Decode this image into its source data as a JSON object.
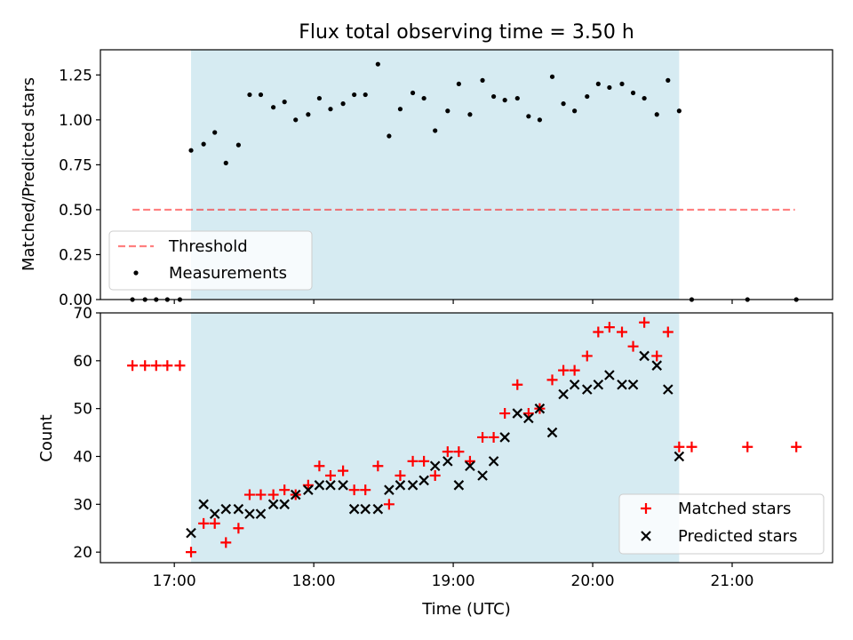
{
  "title": "Flux total observing time = 3.50 h",
  "colors": {
    "shade": "#add8e6",
    "threshold": "#ff0000",
    "measurement": "#000000",
    "matched": "#ff0000",
    "predicted": "#000000"
  },
  "chart_data": [
    {
      "type": "scatter",
      "panel": "top",
      "ylabel": "Matched/Predicted stars",
      "xlim": [
        16.47,
        21.72
      ],
      "ylim": [
        0.0,
        1.39
      ],
      "yticks": [
        0.0,
        0.25,
        0.5,
        0.75,
        1.0,
        1.25
      ],
      "ytick_labels": [
        "0.00",
        "0.25",
        "0.50",
        "0.75",
        "1.00",
        "1.25"
      ],
      "shaded_span": [
        17.12,
        20.62
      ],
      "threshold": {
        "name": "Threshold",
        "y": 0.5,
        "x_range": [
          16.7,
          21.45
        ]
      },
      "series": [
        {
          "name": "Measurements",
          "points": [
            [
              16.7,
              0.0
            ],
            [
              16.79,
              0.0
            ],
            [
              16.87,
              0.0
            ],
            [
              16.95,
              0.0
            ],
            [
              17.04,
              0.0
            ],
            [
              17.12,
              0.83
            ],
            [
              17.21,
              0.865
            ],
            [
              17.29,
              0.93
            ],
            [
              17.37,
              0.76
            ],
            [
              17.46,
              0.86
            ],
            [
              17.54,
              1.14
            ],
            [
              17.62,
              1.14
            ],
            [
              17.71,
              1.07
            ],
            [
              17.79,
              1.1
            ],
            [
              17.87,
              1.0
            ],
            [
              17.96,
              1.03
            ],
            [
              18.04,
              1.12
            ],
            [
              18.12,
              1.06
            ],
            [
              18.21,
              1.09
            ],
            [
              18.29,
              1.14
            ],
            [
              18.37,
              1.14
            ],
            [
              18.46,
              1.31
            ],
            [
              18.54,
              0.91
            ],
            [
              18.62,
              1.06
            ],
            [
              18.71,
              1.15
            ],
            [
              18.79,
              1.12
            ],
            [
              18.87,
              0.94
            ],
            [
              18.96,
              1.05
            ],
            [
              19.04,
              1.2
            ],
            [
              19.12,
              1.03
            ],
            [
              19.21,
              1.22
            ],
            [
              19.29,
              1.13
            ],
            [
              19.37,
              1.11
            ],
            [
              19.46,
              1.12
            ],
            [
              19.54,
              1.02
            ],
            [
              19.62,
              1.0
            ],
            [
              19.71,
              1.24
            ],
            [
              19.79,
              1.09
            ],
            [
              19.87,
              1.05
            ],
            [
              19.96,
              1.13
            ],
            [
              20.04,
              1.2
            ],
            [
              20.12,
              1.18
            ],
            [
              20.21,
              1.2
            ],
            [
              20.29,
              1.15
            ],
            [
              20.37,
              1.12
            ],
            [
              20.46,
              1.03
            ],
            [
              20.54,
              1.22
            ],
            [
              20.62,
              1.05
            ],
            [
              20.71,
              0.0
            ],
            [
              21.11,
              0.0
            ],
            [
              21.46,
              0.0
            ]
          ]
        }
      ],
      "legend": [
        "Threshold",
        "Measurements"
      ],
      "legend_loc": "lower-left"
    },
    {
      "type": "scatter",
      "panel": "bottom",
      "xlabel": "Time (UTC)",
      "ylabel": "Count",
      "xlim": [
        16.47,
        21.72
      ],
      "ylim": [
        17.8,
        70
      ],
      "xticks": [
        17,
        18,
        19,
        20,
        21
      ],
      "xtick_labels": [
        "17:00",
        "18:00",
        "19:00",
        "20:00",
        "21:00"
      ],
      "yticks": [
        20,
        30,
        40,
        50,
        60,
        70
      ],
      "ytick_labels": [
        "20",
        "30",
        "40",
        "50",
        "60",
        "70"
      ],
      "shaded_span": [
        17.12,
        20.62
      ],
      "series": [
        {
          "name": "Matched stars",
          "marker": "plus",
          "points": [
            [
              16.7,
              59
            ],
            [
              16.79,
              59
            ],
            [
              16.87,
              59
            ],
            [
              16.95,
              59
            ],
            [
              17.04,
              59
            ],
            [
              17.12,
              20
            ],
            [
              17.21,
              26
            ],
            [
              17.29,
              26
            ],
            [
              17.37,
              22
            ],
            [
              17.46,
              25
            ],
            [
              17.54,
              32
            ],
            [
              17.62,
              32
            ],
            [
              17.71,
              32
            ],
            [
              17.79,
              33
            ],
            [
              17.87,
              32
            ],
            [
              17.96,
              34
            ],
            [
              18.04,
              38
            ],
            [
              18.12,
              36
            ],
            [
              18.21,
              37
            ],
            [
              18.29,
              33
            ],
            [
              18.37,
              33
            ],
            [
              18.46,
              38
            ],
            [
              18.54,
              30
            ],
            [
              18.62,
              36
            ],
            [
              18.71,
              39
            ],
            [
              18.79,
              39
            ],
            [
              18.87,
              36
            ],
            [
              18.96,
              41
            ],
            [
              19.04,
              41
            ],
            [
              19.12,
              39
            ],
            [
              19.21,
              44
            ],
            [
              19.29,
              44
            ],
            [
              19.37,
              49
            ],
            [
              19.46,
              55
            ],
            [
              19.54,
              49
            ],
            [
              19.62,
              50
            ],
            [
              19.71,
              56
            ],
            [
              19.79,
              58
            ],
            [
              19.87,
              58
            ],
            [
              19.96,
              61
            ],
            [
              20.04,
              66
            ],
            [
              20.12,
              67
            ],
            [
              20.21,
              66
            ],
            [
              20.29,
              63
            ],
            [
              20.37,
              68
            ],
            [
              20.46,
              61
            ],
            [
              20.54,
              66
            ],
            [
              20.62,
              42
            ],
            [
              20.71,
              42
            ],
            [
              21.11,
              42
            ],
            [
              21.46,
              42
            ]
          ]
        },
        {
          "name": "Predicted stars",
          "marker": "x",
          "points": [
            [
              17.12,
              24
            ],
            [
              17.21,
              30
            ],
            [
              17.29,
              28
            ],
            [
              17.37,
              29
            ],
            [
              17.46,
              29
            ],
            [
              17.54,
              28
            ],
            [
              17.62,
              28
            ],
            [
              17.71,
              30
            ],
            [
              17.79,
              30
            ],
            [
              17.87,
              32
            ],
            [
              17.96,
              33
            ],
            [
              18.04,
              34
            ],
            [
              18.12,
              34
            ],
            [
              18.21,
              34
            ],
            [
              18.29,
              29
            ],
            [
              18.37,
              29
            ],
            [
              18.46,
              29
            ],
            [
              18.54,
              33
            ],
            [
              18.62,
              34
            ],
            [
              18.71,
              34
            ],
            [
              18.79,
              35
            ],
            [
              18.87,
              38
            ],
            [
              18.96,
              39
            ],
            [
              19.04,
              34
            ],
            [
              19.12,
              38
            ],
            [
              19.21,
              36
            ],
            [
              19.29,
              39
            ],
            [
              19.37,
              44
            ],
            [
              19.46,
              49
            ],
            [
              19.54,
              48
            ],
            [
              19.62,
              50
            ],
            [
              19.71,
              45
            ],
            [
              19.79,
              53
            ],
            [
              19.87,
              55
            ],
            [
              19.96,
              54
            ],
            [
              20.04,
              55
            ],
            [
              20.12,
              57
            ],
            [
              20.21,
              55
            ],
            [
              20.29,
              55
            ],
            [
              20.37,
              61
            ],
            [
              20.46,
              59
            ],
            [
              20.54,
              54
            ],
            [
              20.62,
              40
            ]
          ]
        }
      ],
      "legend": [
        "Matched stars",
        "Predicted stars"
      ],
      "legend_loc": "lower-right"
    }
  ]
}
